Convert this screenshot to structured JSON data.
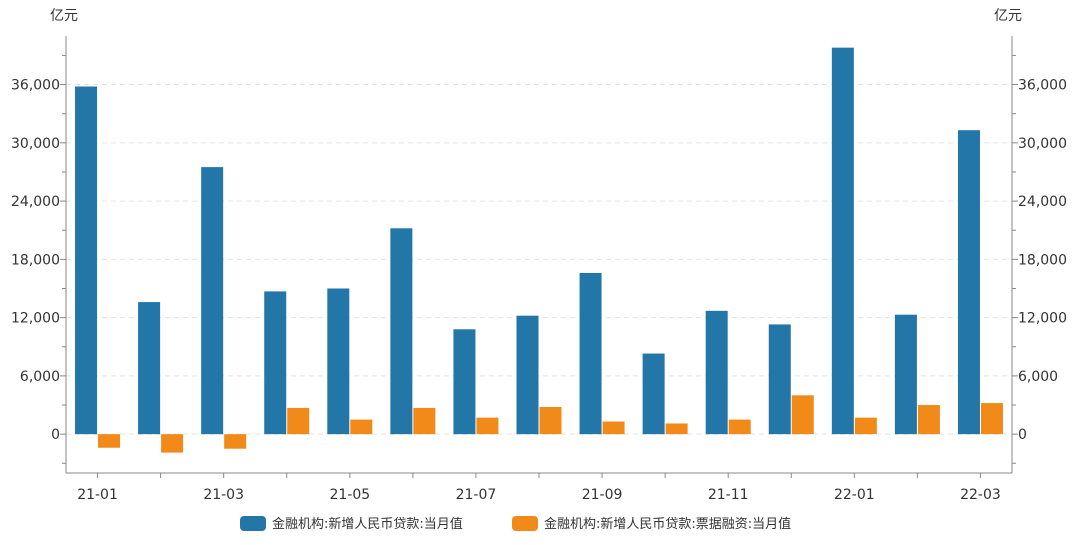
{
  "chart_data": {
    "type": "bar",
    "y_unit_left": "亿元",
    "y_unit_right": "亿元",
    "categories": [
      "21-01",
      "21-02",
      "21-03",
      "21-04",
      "21-05",
      "21-06",
      "21-07",
      "21-08",
      "21-09",
      "21-10",
      "21-11",
      "21-12",
      "22-01",
      "22-02",
      "22-03"
    ],
    "x_tick_labels": [
      "21-01",
      "21-03",
      "21-05",
      "21-07",
      "21-09",
      "21-11",
      "22-01",
      "22-03"
    ],
    "y_ticks": [
      0,
      6000,
      12000,
      18000,
      24000,
      30000,
      36000
    ],
    "y_tick_labels": [
      "0",
      "6,000",
      "12,000",
      "18,000",
      "24,000",
      "30,000",
      "36,000"
    ],
    "ylim": [
      -4000,
      41000
    ],
    "grid": true,
    "legend_position": "bottom",
    "series": [
      {
        "name": "金融机构:新增人民币贷款:当月值",
        "color": "#2376a8",
        "values": [
          35800,
          13600,
          27500,
          14700,
          15000,
          21200,
          10800,
          12200,
          16600,
          8300,
          12700,
          11300,
          39800,
          12300,
          31300
        ]
      },
      {
        "name": "金融机构:新增人民币贷款:票据融资:当月值",
        "color": "#f28a1a",
        "values": [
          -1400,
          -1900,
          -1500,
          2700,
          1500,
          2700,
          1700,
          2800,
          1300,
          1100,
          1500,
          4000,
          1700,
          3000,
          3200
        ]
      }
    ]
  }
}
